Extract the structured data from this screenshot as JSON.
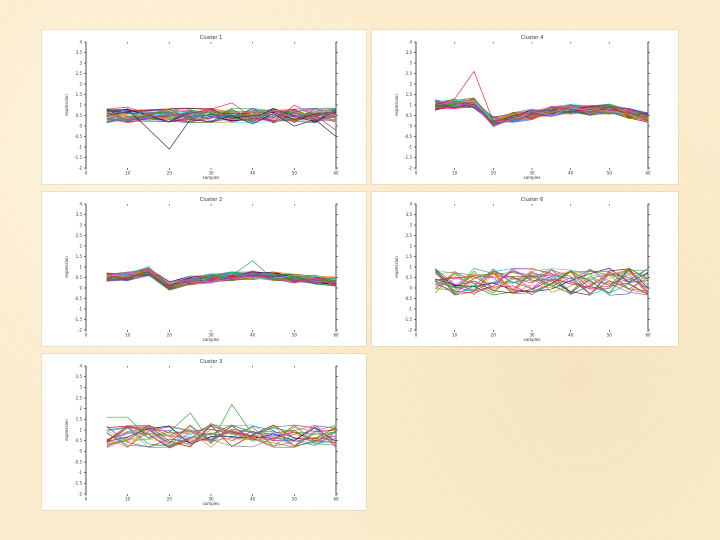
{
  "chart_data": [
    {
      "type": "line",
      "title": "Cluster 1",
      "xlabel": "samples",
      "ylabel": "expression",
      "x_ticks": [
        "0",
        "10",
        "20",
        "30",
        "40",
        "50",
        "60"
      ],
      "y_ticks": [
        "-2",
        "-1.5",
        "-1",
        "-0.5",
        "0",
        "0.5",
        "1",
        "1.5",
        "2",
        "2.5",
        "3",
        "3.5",
        "4"
      ],
      "xlim": [
        0,
        60
      ],
      "ylim": [
        -2,
        4
      ],
      "x": [
        5,
        10,
        20,
        25,
        30,
        35,
        40,
        45,
        50,
        55,
        60
      ],
      "series_count": 40,
      "band": {
        "center": 0.5,
        "spread": 0.35
      },
      "highlights": [
        {
          "values": [
            0.7,
            0.8,
            -1.1,
            0.3,
            0.2,
            0.5,
            0.1,
            0.6,
            0.0,
            0.3,
            -0.5
          ],
          "color": "#222222"
        },
        {
          "values": [
            0.8,
            0.9,
            0.2,
            0.6,
            0.8,
            1.1,
            0.4,
            0.2,
            1.0,
            0.5,
            -0.2
          ],
          "color": "#e6194b"
        }
      ]
    },
    {
      "type": "line",
      "title": "Cluster 4",
      "xlabel": "samples",
      "ylabel": "expression",
      "x_ticks": [
        "0",
        "10",
        "20",
        "30",
        "40",
        "50",
        "60"
      ],
      "y_ticks": [
        "-2",
        "-1.5",
        "-1",
        "-0.5",
        "0",
        "0.5",
        "1",
        "1.5",
        "2",
        "2.5",
        "3",
        "3.5",
        "4"
      ],
      "xlim": [
        0,
        60
      ],
      "ylim": [
        -2,
        4
      ],
      "x": [
        5,
        10,
        15,
        20,
        25,
        30,
        35,
        40,
        45,
        50,
        55,
        60
      ],
      "series_count": 55,
      "band": {
        "center": 0.6,
        "spread": 0.25
      },
      "shape": [
        1.0,
        1.05,
        1.1,
        0.2,
        0.4,
        0.55,
        0.7,
        0.8,
        0.75,
        0.8,
        0.6,
        0.4
      ],
      "highlights": [
        {
          "values": [
            1.0,
            1.3,
            2.6,
            0.2,
            0.5,
            0.6,
            0.9,
            0.8,
            0.7,
            0.8,
            0.6,
            0.4
          ],
          "color": "#d62728"
        }
      ]
    },
    {
      "type": "line",
      "title": "Cluster 2",
      "xlabel": "samples",
      "ylabel": "expression",
      "x_ticks": [
        "0",
        "10",
        "20",
        "30",
        "40",
        "50",
        "60"
      ],
      "y_ticks": [
        "-2",
        "-1.5",
        "-1",
        "-0.5",
        "0",
        "0.5",
        "1",
        "1.5",
        "2",
        "2.5",
        "3",
        "3.5",
        "4"
      ],
      "xlim": [
        0,
        60
      ],
      "ylim": [
        -2,
        4
      ],
      "x": [
        5,
        10,
        15,
        20,
        25,
        30,
        35,
        40,
        45,
        50,
        55,
        60
      ],
      "series_count": 55,
      "band": {
        "center": 0.45,
        "spread": 0.22
      },
      "shape": [
        0.5,
        0.55,
        0.8,
        0.1,
        0.35,
        0.45,
        0.55,
        0.6,
        0.55,
        0.45,
        0.4,
        0.3
      ],
      "highlights": [
        {
          "values": [
            0.5,
            0.5,
            0.7,
            -0.1,
            0.3,
            0.5,
            0.6,
            1.3,
            0.4,
            0.5,
            0.4,
            0.3
          ],
          "color": "#2ca02c"
        }
      ]
    },
    {
      "type": "line",
      "title": "Cluster 6",
      "xlabel": "samples",
      "ylabel": "expression",
      "x_ticks": [
        "0",
        "10",
        "20",
        "30",
        "40",
        "50",
        "60"
      ],
      "y_ticks": [
        "-2",
        "-1.5",
        "-1",
        "-0.5",
        "0",
        "0.5",
        "1",
        "1.5",
        "2",
        "2.5",
        "3",
        "3.5",
        "4"
      ],
      "xlim": [
        0,
        60
      ],
      "ylim": [
        -2,
        4
      ],
      "x": [
        5,
        10,
        15,
        20,
        25,
        30,
        35,
        40,
        45,
        50,
        55,
        60
      ],
      "series_count": 25,
      "band": {
        "center": 0.3,
        "spread": 0.65
      },
      "highlights": []
    },
    {
      "type": "line",
      "title": "Cluster 3",
      "xlabel": "samples",
      "ylabel": "expression",
      "x_ticks": [
        "0",
        "10",
        "20",
        "30",
        "40",
        "50",
        "60"
      ],
      "y_ticks": [
        "-2",
        "-1.5",
        "-1",
        "-0.5",
        "0",
        "0.5",
        "1",
        "1.5",
        "2",
        "2.5",
        "3",
        "3.5",
        "4"
      ],
      "xlim": [
        0,
        60
      ],
      "ylim": [
        -2,
        4
      ],
      "x": [
        5,
        10,
        15,
        20,
        25,
        30,
        35,
        40,
        45,
        50,
        55,
        60
      ],
      "series_count": 22,
      "band": {
        "center": 0.7,
        "spread": 0.55
      },
      "highlights": [
        {
          "values": [
            1.6,
            1.6,
            0.6,
            0.9,
            1.8,
            0.4,
            2.2,
            0.8,
            1.1,
            0.9,
            0.8,
            0.9
          ],
          "color": "#2ca02c"
        },
        {
          "values": [
            0.5,
            1.2,
            0.8,
            0.2,
            0.6,
            1.3,
            0.9,
            0.7,
            0.6,
            0.9,
            0.5,
            0.4
          ],
          "color": "#d62728"
        }
      ]
    }
  ],
  "palette": [
    "#e6194b",
    "#3cb44b",
    "#4363d8",
    "#f58231",
    "#911eb4",
    "#42d4f4",
    "#f032e6",
    "#9a9a00",
    "#000075",
    "#469990",
    "#800000",
    "#808000",
    "#ff6f9f",
    "#1f77b4",
    "#2ca02c",
    "#9467bd",
    "#8c564b",
    "#17becf",
    "#bcbd22",
    "#7f7f7f",
    "#ff7f0e",
    "#d62728",
    "#00a000",
    "#a05000"
  ]
}
